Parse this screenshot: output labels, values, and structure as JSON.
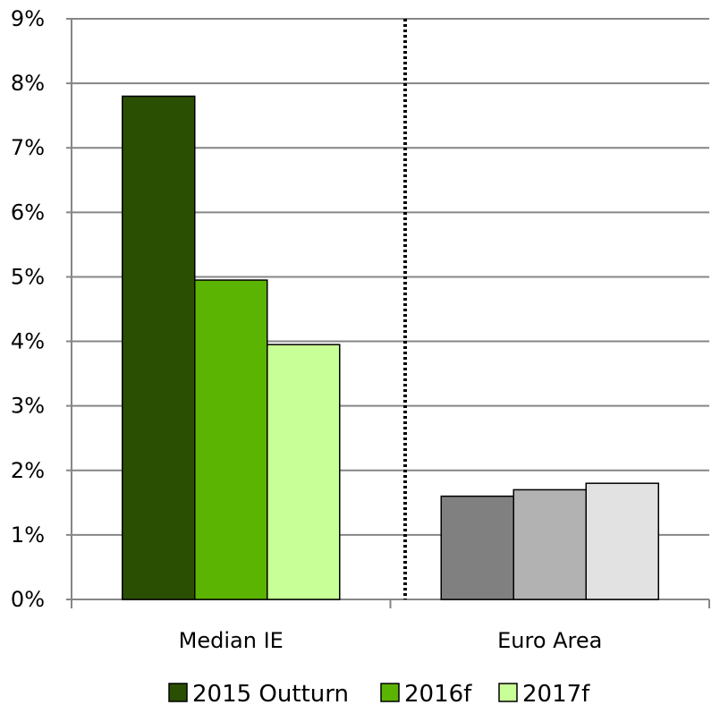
{
  "chart_data": {
    "type": "bar",
    "categories": [
      "Median IE",
      "Euro Area"
    ],
    "series": [
      {
        "name": "2015 Outturn",
        "values": [
          7.8,
          1.6
        ],
        "colors": [
          "#2b4f02",
          "#808080"
        ]
      },
      {
        "name": "2016f",
        "values": [
          4.95,
          1.7
        ],
        "colors": [
          "#5cb402",
          "#b2b2b2"
        ]
      },
      {
        "name": "2017f",
        "values": [
          3.95,
          1.8
        ],
        "colors": [
          "#c8ff96",
          "#e2e2e2"
        ]
      }
    ],
    "y_ticks": [
      "0%",
      "1%",
      "2%",
      "3%",
      "4%",
      "5%",
      "6%",
      "7%",
      "8%",
      "9%"
    ],
    "ylim": [
      0,
      9
    ],
    "grid": true,
    "separator": "dotted vertical line between categories",
    "legend_position": "bottom",
    "title": "",
    "xlabel": "",
    "ylabel": ""
  }
}
